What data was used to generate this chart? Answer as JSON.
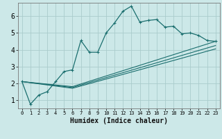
{
  "title": "",
  "xlabel": "Humidex (Indice chaleur)",
  "ylabel": "",
  "bg_color": "#cce8e8",
  "grid_color": "#aacccc",
  "line_color": "#1a6e6e",
  "xlim": [
    -0.5,
    23.5
  ],
  "ylim": [
    0.5,
    6.8
  ],
  "xticks": [
    0,
    1,
    2,
    3,
    4,
    5,
    6,
    7,
    8,
    9,
    10,
    11,
    12,
    13,
    14,
    15,
    16,
    17,
    18,
    19,
    20,
    21,
    22,
    23
  ],
  "yticks": [
    1,
    2,
    3,
    4,
    5,
    6
  ],
  "main_line": {
    "x": [
      0,
      1,
      2,
      3,
      4,
      5,
      6,
      7,
      8,
      9,
      10,
      11,
      12,
      13,
      14,
      15,
      16,
      17,
      18,
      19,
      20,
      21,
      22,
      23
    ],
    "y": [
      2.1,
      0.75,
      1.3,
      1.5,
      2.1,
      2.7,
      2.8,
      4.55,
      3.85,
      3.85,
      5.0,
      5.6,
      6.3,
      6.6,
      5.65,
      5.75,
      5.8,
      5.35,
      5.4,
      4.95,
      5.0,
      4.85,
      4.55,
      4.5
    ]
  },
  "fan_lines": [
    {
      "x": [
        0,
        6,
        23
      ],
      "y": [
        2.1,
        1.8,
        4.5
      ]
    },
    {
      "x": [
        0,
        6,
        23
      ],
      "y": [
        2.1,
        1.75,
        4.25
      ]
    },
    {
      "x": [
        0,
        6,
        23
      ],
      "y": [
        2.1,
        1.7,
        4.05
      ]
    }
  ]
}
